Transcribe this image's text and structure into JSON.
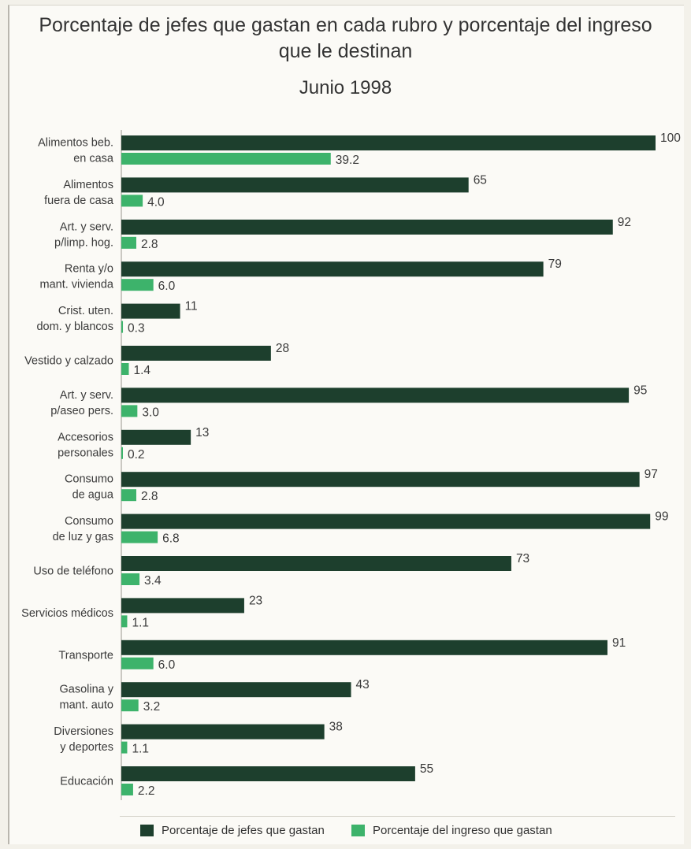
{
  "title_line1": "Porcentaje de jefes que gastan en cada rubro y porcentaje del ingreso",
  "title_line2": "que le destinan",
  "subtitle": "Junio 1998",
  "colors": {
    "jefes": "#1d3f2d",
    "ingreso": "#3db36b"
  },
  "legend": [
    {
      "label": "Porcentaje de jefes que gastan",
      "color_key": "jefes"
    },
    {
      "label": "Porcentaje del ingreso que gastan",
      "color_key": "ingreso"
    }
  ],
  "chart_data": {
    "type": "bar",
    "orientation": "horizontal",
    "categories": [
      [
        "Alimentos beb.",
        "en casa"
      ],
      [
        "Alimentos",
        "fuera de casa"
      ],
      [
        "Art. y serv.",
        "p/limp. hog."
      ],
      [
        "Renta y/o",
        "mant. vivienda"
      ],
      [
        "Crist. uten.",
        "dom. y blancos"
      ],
      [
        "Vestido y calzado"
      ],
      [
        "Art. y serv.",
        "p/aseo pers."
      ],
      [
        "Accesorios",
        "personales"
      ],
      [
        "Consumo",
        "de agua"
      ],
      [
        "Consumo",
        "de luz y gas"
      ],
      [
        "Uso de teléfono"
      ],
      [
        "Servicios médicos"
      ],
      [
        "Transporte"
      ],
      [
        "Gasolina y",
        "mant. auto"
      ],
      [
        "Diversiones",
        "y deportes"
      ],
      [
        "Educación"
      ]
    ],
    "series": [
      {
        "name": "Porcentaje de jefes que gastan",
        "values": [
          100,
          65,
          92,
          79,
          11,
          28,
          95,
          13,
          97,
          99,
          73,
          23,
          91,
          43,
          38,
          55
        ],
        "labels": [
          "100",
          "65",
          "92",
          "79",
          "11",
          "28",
          "95",
          "13",
          "97",
          "99",
          "73",
          "23",
          "91",
          "43",
          "38",
          "55"
        ]
      },
      {
        "name": "Porcentaje del ingreso que gastan",
        "values": [
          39.2,
          4.0,
          2.8,
          6.0,
          0.3,
          1.4,
          3.0,
          0.2,
          2.8,
          6.8,
          3.4,
          1.1,
          6.0,
          3.2,
          1.1,
          2.2
        ],
        "labels": [
          "39.2",
          "4.0",
          "2.8",
          "6.0",
          "0.3",
          "1.4",
          "3.0",
          "0.2",
          "2.8",
          "6.8",
          "3.4",
          "1.1",
          "6.0",
          "3.2",
          "1.1",
          "2.2"
        ]
      }
    ],
    "xlim": [
      0,
      100
    ],
    "grid": false,
    "legend_position": "bottom"
  }
}
